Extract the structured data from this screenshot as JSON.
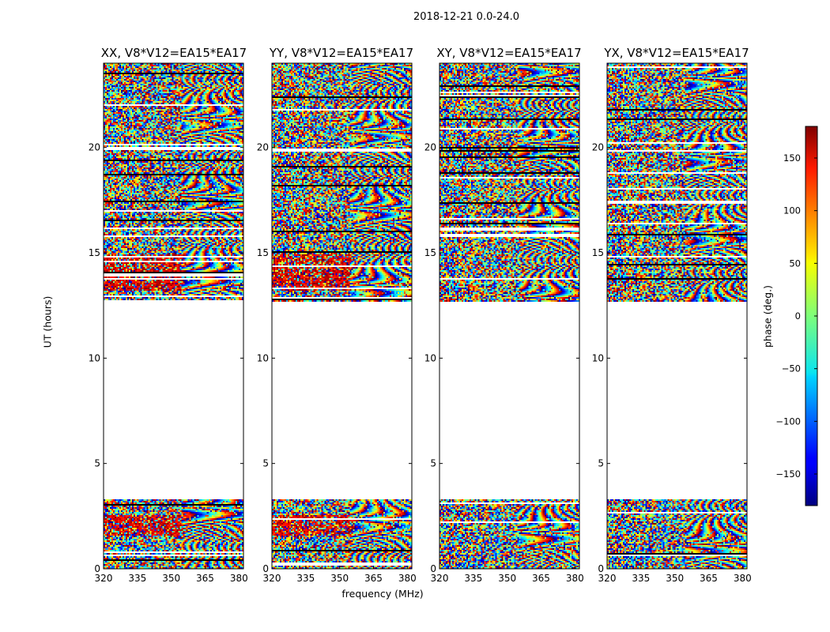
{
  "chart_data": {
    "type": "heatmap",
    "title": "2018-12-21 0.0-24.0",
    "xlabel": "frequency (MHz)",
    "ylabel": "UT (hours)",
    "xlim": [
      320,
      382
    ],
    "ylim": [
      0,
      24
    ],
    "xticks": [
      "320",
      "335",
      "350",
      "365",
      "380"
    ],
    "yticks": [
      "0",
      "5",
      "10",
      "15",
      "20"
    ],
    "panels": [
      {
        "title": "XX, V8*V12=EA15*EA17"
      },
      {
        "title": "YY, V8*V12=EA15*EA17"
      },
      {
        "title": "XY, V8*V12=EA15*EA17"
      },
      {
        "title": "YX, V8*V12=EA15*EA17"
      }
    ],
    "data_bands_ut_hours": [
      [
        0,
        3.3
      ],
      [
        12.7,
        24
      ]
    ],
    "colorbar": {
      "label": "phase (deg.)",
      "range": [
        -180,
        180
      ],
      "ticks": [
        "150",
        "100",
        "50",
        "0",
        "−50",
        "−100",
        "−150"
      ],
      "tick_values": [
        150,
        100,
        50,
        0,
        -50,
        -100,
        -150
      ],
      "colormap": "jet"
    }
  }
}
